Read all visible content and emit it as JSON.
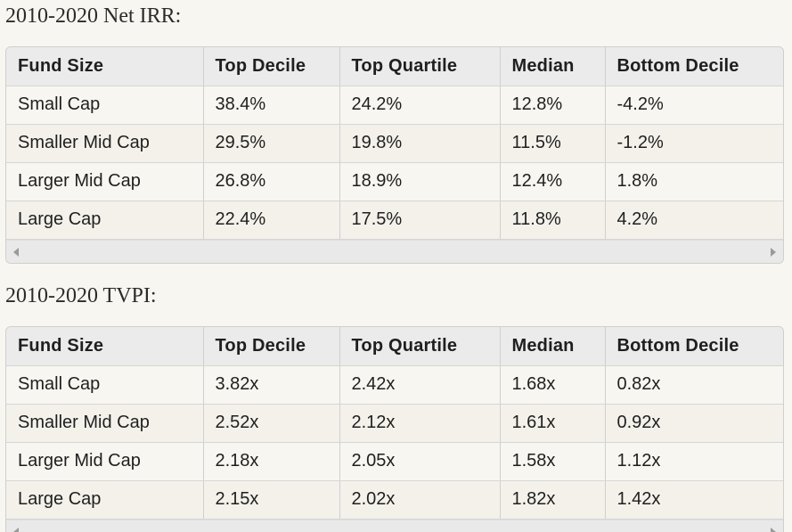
{
  "sections": [
    {
      "title": "2010-2020 Net IRR:",
      "headers": [
        "Fund Size",
        "Top Decile",
        "Top Quartile",
        "Median",
        "Bottom Decile"
      ],
      "rows": [
        [
          "Small Cap",
          "38.4%",
          "24.2%",
          "12.8%",
          "-4.2%"
        ],
        [
          "Smaller Mid Cap",
          "29.5%",
          "19.8%",
          "11.5%",
          "-1.2%"
        ],
        [
          "Larger Mid Cap",
          "26.8%",
          "18.9%",
          "12.4%",
          "1.8%"
        ],
        [
          "Large Cap",
          "22.4%",
          "17.5%",
          "11.8%",
          "4.2%"
        ]
      ]
    },
    {
      "title": "2010-2020 TVPI:",
      "headers": [
        "Fund Size",
        "Top Decile",
        "Top Quartile",
        "Median",
        "Bottom Decile"
      ],
      "rows": [
        [
          "Small Cap",
          "3.82x",
          "2.42x",
          "1.68x",
          "0.82x"
        ],
        [
          "Smaller Mid Cap",
          "2.52x",
          "2.12x",
          "1.61x",
          "0.92x"
        ],
        [
          "Larger Mid Cap",
          "2.18x",
          "2.05x",
          "1.58x",
          "1.12x"
        ],
        [
          "Large Cap",
          "2.15x",
          "2.02x",
          "1.82x",
          "1.42x"
        ]
      ]
    }
  ],
  "icons": {
    "scroll_left": "chevron-left-icon",
    "scroll_right": "chevron-right-icon"
  }
}
